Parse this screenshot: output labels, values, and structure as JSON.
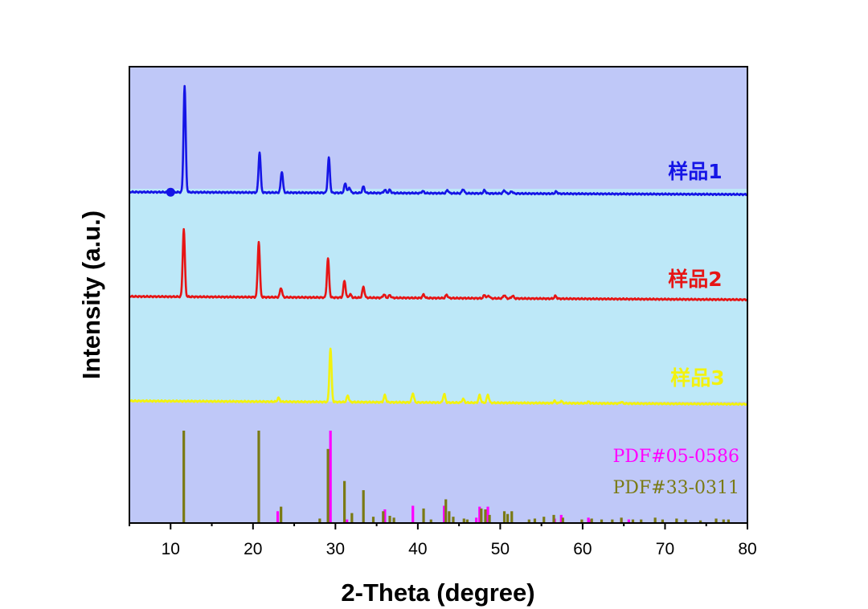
{
  "chart_data": {
    "type": "line",
    "title": "",
    "xlabel": "2-Theta (degree)",
    "ylabel": "Intensity (a.u.)",
    "xlim": [
      5,
      80
    ],
    "x_ticks": [
      10,
      20,
      30,
      40,
      50,
      60,
      70,
      80
    ],
    "y_ticks_shown": false,
    "background_bands": [
      {
        "region": "sample-1",
        "color": "#bfc8f8"
      },
      {
        "region": "sample-2",
        "color": "#bde8f8"
      },
      {
        "region": "sample-3",
        "color": "#bde8f8"
      },
      {
        "region": "references",
        "color": "#bfc8f8"
      }
    ],
    "series": [
      {
        "name": "样品1",
        "color": "#1515e6",
        "peaks": [
          [
            11.7,
            100
          ],
          [
            20.8,
            38
          ],
          [
            23.5,
            20
          ],
          [
            29.2,
            33
          ],
          [
            31.2,
            9
          ],
          [
            31.7,
            5
          ],
          [
            33.4,
            6
          ],
          [
            36.0,
            3
          ],
          [
            36.6,
            3
          ],
          [
            40.6,
            2
          ],
          [
            43.6,
            3
          ],
          [
            45.5,
            4
          ],
          [
            48.1,
            3
          ],
          [
            50.5,
            3
          ],
          [
            51.4,
            2
          ],
          [
            56.8,
            2
          ]
        ],
        "marker": {
          "x": 10.0,
          "shape": "circle"
        }
      },
      {
        "name": "样品2",
        "color": "#e61515",
        "peaks": [
          [
            11.6,
            100
          ],
          [
            20.7,
            82
          ],
          [
            23.4,
            14
          ],
          [
            29.1,
            58
          ],
          [
            31.1,
            25
          ],
          [
            31.8,
            5
          ],
          [
            33.4,
            16
          ],
          [
            35.9,
            5
          ],
          [
            36.6,
            4
          ],
          [
            40.7,
            5
          ],
          [
            43.5,
            5
          ],
          [
            48.1,
            5
          ],
          [
            48.6,
            4
          ],
          [
            50.5,
            5
          ],
          [
            51.5,
            4
          ],
          [
            56.7,
            4
          ]
        ],
        "marker": null
      },
      {
        "name": "样品3",
        "color": "#f2f20e",
        "peaks": [
          [
            23.1,
            7
          ],
          [
            29.4,
            100
          ],
          [
            31.5,
            12
          ],
          [
            36.0,
            13
          ],
          [
            39.4,
            17
          ],
          [
            43.2,
            16
          ],
          [
            45.5,
            7
          ],
          [
            47.5,
            14
          ],
          [
            48.5,
            15
          ],
          [
            56.6,
            4
          ],
          [
            57.4,
            4
          ],
          [
            60.7,
            3
          ],
          [
            64.7,
            3
          ]
        ],
        "marker": null
      }
    ],
    "references": [
      {
        "name": "PDF#05-0586",
        "color": "#ff00ff",
        "lines": [
          [
            23.0,
            12
          ],
          [
            29.4,
            100
          ],
          [
            31.4,
            3
          ],
          [
            36.0,
            14
          ],
          [
            39.4,
            18
          ],
          [
            43.2,
            18
          ],
          [
            47.1,
            5
          ],
          [
            47.5,
            17
          ],
          [
            48.5,
            17
          ],
          [
            56.6,
            4
          ],
          [
            57.4,
            8
          ],
          [
            60.7,
            5
          ],
          [
            61.0,
            3
          ],
          [
            64.7,
            4
          ],
          [
            65.6,
            3
          ]
        ]
      },
      {
        "name": "PDF#33-0311",
        "color": "#7a7a14",
        "lines": [
          [
            11.6,
            100
          ],
          [
            20.7,
            100
          ],
          [
            23.4,
            17
          ],
          [
            28.1,
            4
          ],
          [
            29.1,
            80
          ],
          [
            31.1,
            45
          ],
          [
            32.0,
            10
          ],
          [
            33.4,
            35
          ],
          [
            34.6,
            6
          ],
          [
            35.8,
            12
          ],
          [
            36.6,
            7
          ],
          [
            37.1,
            5
          ],
          [
            40.7,
            15
          ],
          [
            41.6,
            3
          ],
          [
            43.4,
            25
          ],
          [
            43.8,
            12
          ],
          [
            44.3,
            6
          ],
          [
            45.6,
            4
          ],
          [
            46.0,
            3
          ],
          [
            47.7,
            15
          ],
          [
            48.2,
            14
          ],
          [
            48.7,
            8
          ],
          [
            50.5,
            12
          ],
          [
            50.9,
            9
          ],
          [
            51.4,
            12
          ],
          [
            53.5,
            3
          ],
          [
            54.2,
            4
          ],
          [
            55.3,
            6
          ],
          [
            56.5,
            8
          ],
          [
            57.6,
            5
          ],
          [
            59.9,
            3
          ],
          [
            61.1,
            4
          ],
          [
            62.3,
            3
          ],
          [
            63.6,
            3
          ],
          [
            64.7,
            5
          ],
          [
            66.1,
            3
          ],
          [
            67.1,
            3
          ],
          [
            68.8,
            5
          ],
          [
            69.7,
            3
          ],
          [
            71.4,
            4
          ],
          [
            72.5,
            3
          ],
          [
            74.3,
            2
          ],
          [
            76.2,
            4
          ],
          [
            77.1,
            3
          ],
          [
            77.7,
            3
          ]
        ]
      }
    ]
  }
}
